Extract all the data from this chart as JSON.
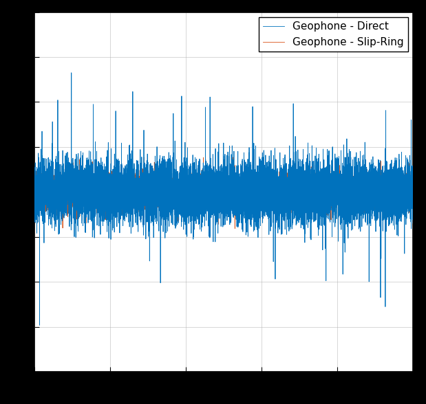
{
  "title": "",
  "xlabel": "",
  "ylabel": "",
  "legend_labels": [
    "Geophone - Direct",
    "Geophone - Slip-Ring"
  ],
  "colors": [
    "#0072BD",
    "#D95319"
  ],
  "line_width": 0.6,
  "n_points": 10000,
  "blue_amplitude": 0.35,
  "orange_amplitude": 0.18,
  "blue_spike_prob": 0.003,
  "blue_spike_amp": 2.2,
  "orange_spike_prob": 0.002,
  "orange_spike_amp": 0.6,
  "ylim": [
    -4.0,
    4.0
  ],
  "xlim": [
    0,
    10000
  ],
  "figsize": [
    6.19,
    5.88
  ],
  "dpi": 100,
  "background_color": "#000000",
  "plot_bg_color": "#ffffff",
  "grid_color": "#b0b0b0",
  "grid_alpha": 0.7,
  "legend_fontsize": 11,
  "seed": 42
}
